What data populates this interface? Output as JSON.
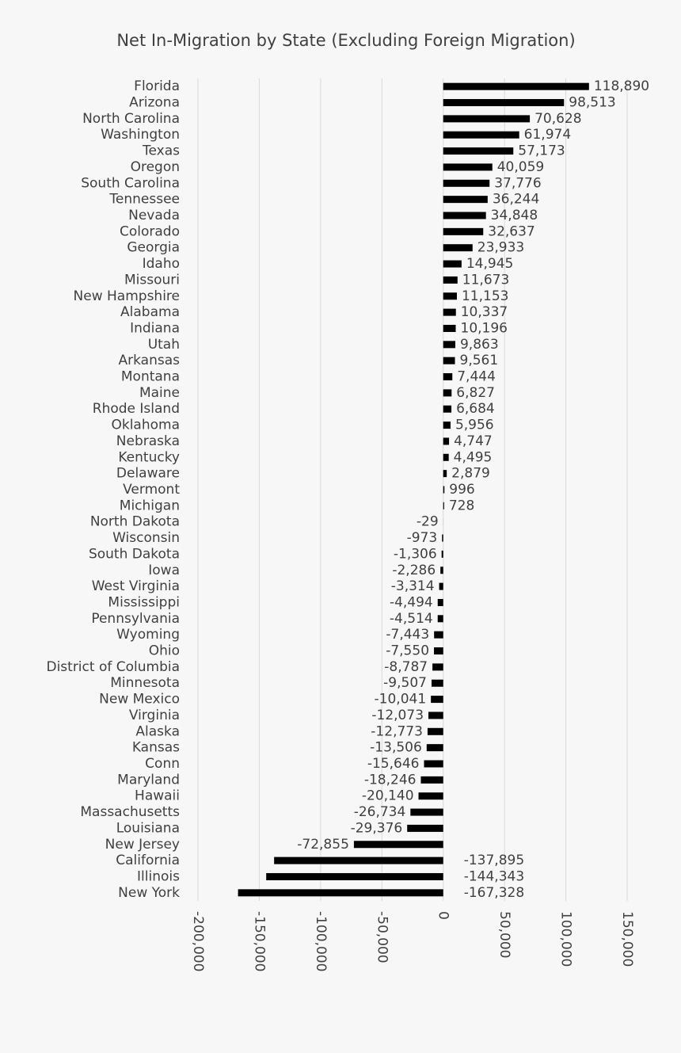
{
  "chart_data": {
    "type": "bar",
    "orientation": "horizontal",
    "title": "Net In-Migration by State (Excluding Foreign Migration)",
    "categories": [
      "Florida",
      "Arizona",
      "North Carolina",
      "Washington",
      "Texas",
      "Oregon",
      "South Carolina",
      "Tennessee",
      "Nevada",
      "Colorado",
      "Georgia",
      "Idaho",
      "Missouri",
      "New Hampshire",
      "Alabama",
      "Indiana",
      "Utah",
      "Arkansas",
      "Montana",
      "Maine",
      "Rhode Island",
      "Oklahoma",
      "Nebraska",
      "Kentucky",
      "Delaware",
      "Vermont",
      "Michigan",
      "North Dakota",
      "Wisconsin",
      "South Dakota",
      "Iowa",
      "West Virginia",
      "Mississippi",
      "Pennsylvania",
      "Wyoming",
      "Ohio",
      "District of Columbia",
      "Minnesota",
      "New Mexico",
      "Virginia",
      "Alaska",
      "Kansas",
      "Conn",
      "Maryland",
      "Hawaii",
      "Massachusetts",
      "Louisiana",
      "New Jersey",
      "California",
      "Illinois",
      "New York"
    ],
    "values": [
      118890,
      98513,
      70628,
      61974,
      57173,
      40059,
      37776,
      36244,
      34848,
      32637,
      23933,
      14945,
      11673,
      11153,
      10337,
      10196,
      9863,
      9561,
      7444,
      6827,
      6684,
      5956,
      4747,
      4495,
      2879,
      996,
      728,
      -29,
      -973,
      -1306,
      -2286,
      -3314,
      -4494,
      -4514,
      -7443,
      -7550,
      -8787,
      -9507,
      -10041,
      -12073,
      -12773,
      -13506,
      -15646,
      -18246,
      -20140,
      -26734,
      -29376,
      -72855,
      -137895,
      -144343,
      -167328
    ],
    "value_labels": [
      "118,890",
      "98,513",
      "70,628",
      "61,974",
      "57,173",
      "40,059",
      "37,776",
      "36,244",
      "34,848",
      "32,637",
      "23,933",
      "14,945",
      "11,673",
      "11,153",
      "10,337",
      "10,196",
      "9,863",
      "9,561",
      "7,444",
      "6,827",
      "6,684",
      "5,956",
      "4,747",
      "4,495",
      "2,879",
      "996",
      "728",
      "-29",
      "-973",
      "-1,306",
      "-2,286",
      "-3,314",
      "-4,494",
      "-4,514",
      "-7,443",
      "-7,550",
      "-8,787",
      "-9,507",
      "-10,041",
      "-12,073",
      "-12,773",
      "-13,506",
      "-15,646",
      "-18,246",
      "-20,140",
      "-26,734",
      "-29,376",
      "-72,855",
      "-137,895",
      "-144,343",
      "-167,328"
    ],
    "color": "#000000",
    "xlim": [
      -200000,
      150000
    ],
    "xticks": [
      {
        "value": -200000,
        "label": "-200,000"
      },
      {
        "value": -150000,
        "label": "-150,000"
      },
      {
        "value": -100000,
        "label": "-100,000"
      },
      {
        "value": -50000,
        "label": "-50,000"
      },
      0,
      {
        "value": 50000,
        "label": "50,000"
      },
      {
        "value": 100000,
        "label": "100,000"
      },
      {
        "value": 150000,
        "label": "150,000"
      }
    ],
    "grid": true
  }
}
